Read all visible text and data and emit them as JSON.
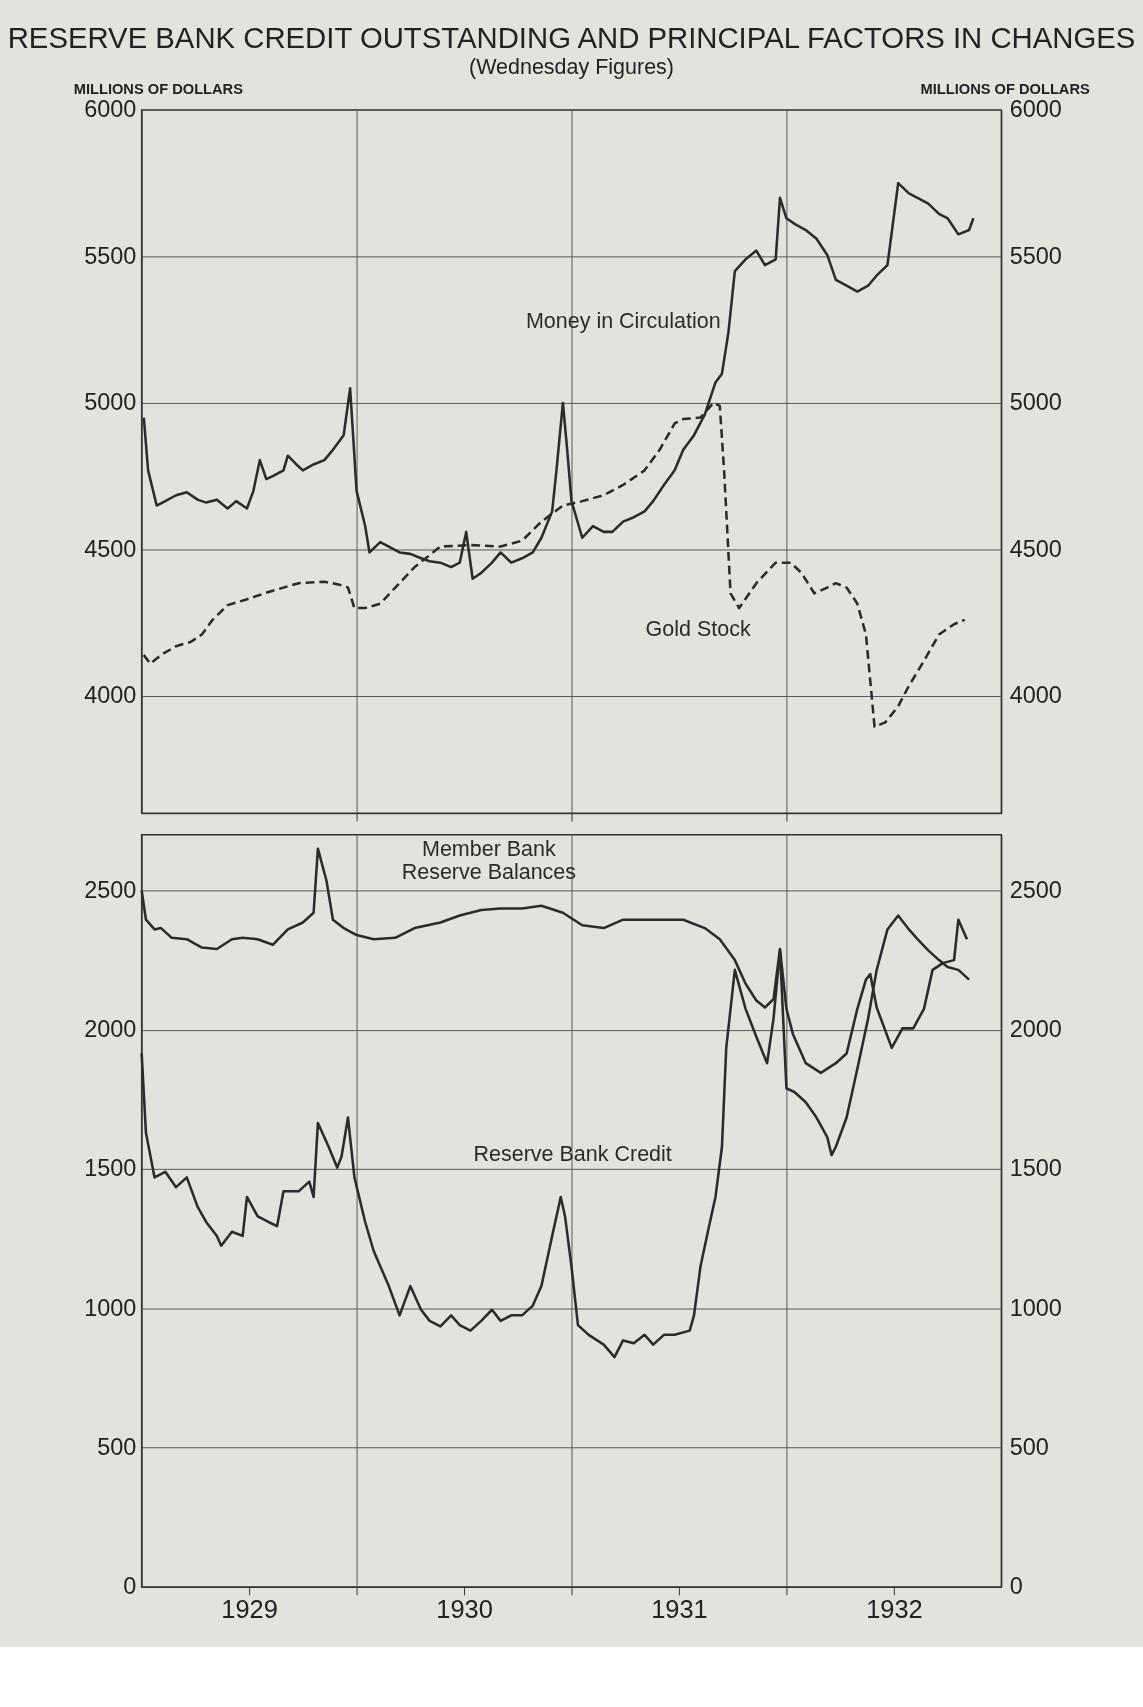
{
  "chart_data": [
    {
      "type": "line",
      "title": "RESERVE BANK CREDIT OUTSTANDING AND PRINCIPAL FACTORS IN CHANGES",
      "subtitle": "(Wednesday Figures)",
      "ylabel": "MILLIONS OF DOLLARS",
      "y2label": "MILLIONS OF DOLLARS",
      "xlim": [
        1929,
        1933
      ],
      "xticks": [
        {
          "value": 1930,
          "label": null
        },
        {
          "value": 1931,
          "label": null
        },
        {
          "value": 1932,
          "label": null
        }
      ],
      "ylim": [
        3600,
        6000
      ],
      "yticks": [
        4000,
        4500,
        5000,
        5500,
        6000
      ],
      "y2lim": [
        3600,
        6000
      ],
      "y2ticks": [
        4000,
        4500,
        5000,
        5500,
        6000
      ],
      "grid": true,
      "tick_labels": "y",
      "series": [
        {
          "name": "Money in Circulation",
          "color": "#2b2b2b",
          "line_style": "solid",
          "x": [
            1929.01,
            1929.03,
            1929.07,
            1929.11,
            1929.16,
            1929.21,
            1929.26,
            1929.3,
            1929.35,
            1929.4,
            1929.44,
            1929.49,
            1929.52,
            1929.55,
            1929.58,
            1929.61,
            1929.66,
            1929.68,
            1929.72,
            1929.75,
            1929.8,
            1929.85,
            1929.89,
            1929.94,
            1929.97,
            1930.0,
            1930.04,
            1930.06,
            1930.11,
            1930.15,
            1930.2,
            1930.25,
            1930.3,
            1930.34,
            1930.39,
            1930.44,
            1930.48,
            1930.51,
            1930.54,
            1930.58,
            1930.63,
            1930.67,
            1930.72,
            1930.77,
            1930.82,
            1930.86,
            1930.91,
            1930.93,
            1930.96,
            1930.98,
            1931.0,
            1931.05,
            1931.1,
            1931.15,
            1931.19,
            1931.24,
            1931.29,
            1931.34,
            1931.38,
            1931.43,
            1931.48,
            1931.52,
            1931.57,
            1931.62,
            1931.67,
            1931.7,
            1931.73,
            1931.76,
            1931.81,
            1931.86,
            1931.9,
            1931.95,
            1931.97,
            1932.0,
            1932.04,
            1932.09,
            1932.14,
            1932.19,
            1932.23,
            1932.28,
            1932.33,
            1932.38,
            1932.42,
            1932.47,
            1932.52,
            1932.57,
            1932.61,
            1932.66,
            1932.71,
            1932.75,
            1932.8,
            1932.85,
            1932.87
          ],
          "values": [
            4950,
            4770,
            4650,
            4665,
            4685,
            4695,
            4670,
            4660,
            4670,
            4640,
            4665,
            4640,
            4700,
            4805,
            4740,
            4750,
            4770,
            4820,
            4790,
            4770,
            4790,
            4805,
            4840,
            4890,
            5050,
            4700,
            4580,
            4490,
            4525,
            4510,
            4490,
            4485,
            4470,
            4460,
            4455,
            4440,
            4455,
            4560,
            4400,
            4420,
            4455,
            4490,
            4455,
            4470,
            4490,
            4540,
            4630,
            4770,
            5000,
            4840,
            4665,
            4540,
            4580,
            4560,
            4560,
            4595,
            4610,
            4630,
            4665,
            4720,
            4770,
            4840,
            4890,
            4960,
            5070,
            5100,
            5240,
            5450,
            5490,
            5520,
            5470,
            5490,
            5700,
            5630,
            5610,
            5590,
            5560,
            5505,
            5420,
            5400,
            5380,
            5400,
            5435,
            5470,
            5750,
            5715,
            5700,
            5680,
            5645,
            5630,
            5575,
            5590,
            5630
          ]
        },
        {
          "name": "Gold Stock",
          "color": "#2b2b2b",
          "line_style": "dashed",
          "x": [
            1929.01,
            1929.04,
            1929.09,
            1929.16,
            1929.23,
            1929.28,
            1929.33,
            1929.4,
            1929.49,
            1929.59,
            1929.73,
            1929.85,
            1929.92,
            1929.96,
            1929.99,
            1930.04,
            1930.11,
            1930.18,
            1930.27,
            1930.39,
            1930.53,
            1930.67,
            1930.77,
            1930.86,
            1930.96,
            1931.05,
            1931.15,
            1931.24,
            1931.34,
            1931.41,
            1931.48,
            1931.52,
            1931.6,
            1931.66,
            1931.69,
            1931.71,
            1931.74,
            1931.78,
            1931.86,
            1931.95,
            1932.02,
            1932.07,
            1932.13,
            1932.19,
            1932.23,
            1932.28,
            1932.33,
            1932.37,
            1932.41,
            1932.46,
            1932.52,
            1932.57,
            1932.64,
            1932.71,
            1932.78,
            1932.83
          ],
          "values": [
            4140,
            4110,
            4140,
            4170,
            4185,
            4210,
            4260,
            4310,
            4330,
            4355,
            4385,
            4390,
            4380,
            4370,
            4300,
            4300,
            4315,
            4370,
            4440,
            4510,
            4515,
            4510,
            4530,
            4595,
            4650,
            4665,
            4685,
            4720,
            4770,
            4840,
            4930,
            4945,
            4950,
            5000,
            4990,
            4770,
            4350,
            4300,
            4385,
            4455,
            4455,
            4420,
            4350,
            4370,
            4385,
            4370,
            4315,
            4210,
            3895,
            3910,
            3965,
            4035,
            4120,
            4210,
            4245,
            4260
          ]
        }
      ]
    },
    {
      "type": "line",
      "xlim": [
        1929,
        1933
      ],
      "xticks": [
        {
          "value": 1929.5,
          "label": "1929"
        },
        {
          "value": 1930,
          "label": null
        },
        {
          "value": 1930.5,
          "label": "1930"
        },
        {
          "value": 1931,
          "label": null
        },
        {
          "value": 1931.5,
          "label": "1931"
        },
        {
          "value": 1932,
          "label": null
        },
        {
          "value": 1932.5,
          "label": "1932"
        }
      ],
      "ylim": [
        0,
        2700
      ],
      "yticks": [
        0,
        500,
        1000,
        1500,
        2000,
        2500
      ],
      "y2lim": [
        0,
        2700
      ],
      "y2ticks": [
        0,
        500,
        1000,
        1500,
        2000,
        2500
      ],
      "grid": true,
      "series": [
        {
          "name": "Member Bank Reserve Balances",
          "color": "#2b2b2b",
          "line_style": "solid",
          "x": [
            1929.0,
            1929.02,
            1929.06,
            1929.09,
            1929.14,
            1929.21,
            1929.28,
            1929.35,
            1929.42,
            1929.47,
            1929.54,
            1929.61,
            1929.68,
            1929.75,
            1929.8,
            1929.82,
            1929.86,
            1929.89,
            1929.94,
            1930.0,
            1930.08,
            1930.18,
            1930.27,
            1930.39,
            1930.48,
            1930.58,
            1930.67,
            1930.77,
            1930.86,
            1930.96,
            1931.05,
            1931.15,
            1931.24,
            1931.34,
            1931.43,
            1931.52,
            1931.62,
            1931.69,
            1931.76,
            1931.81,
            1931.86,
            1931.9,
            1931.94,
            1931.97,
            1932.0,
            1932.03,
            1932.09,
            1932.16,
            1932.23,
            1932.28,
            1932.33,
            1932.37,
            1932.39,
            1932.42,
            1932.49,
            1932.54,
            1932.59,
            1932.64,
            1932.68,
            1932.73,
            1932.78,
            1932.8,
            1932.84
          ],
          "values": [
            2500,
            2395,
            2360,
            2365,
            2330,
            2325,
            2295,
            2290,
            2325,
            2330,
            2325,
            2305,
            2360,
            2385,
            2420,
            2650,
            2535,
            2395,
            2365,
            2340,
            2325,
            2330,
            2365,
            2385,
            2410,
            2430,
            2435,
            2435,
            2445,
            2420,
            2375,
            2365,
            2395,
            2395,
            2395,
            2395,
            2365,
            2325,
            2250,
            2165,
            2105,
            2080,
            2110,
            2290,
            2075,
            1985,
            1880,
            1845,
            1880,
            1915,
            2075,
            2180,
            2200,
            2080,
            1935,
            2005,
            2005,
            2075,
            2215,
            2240,
            2250,
            2395,
            2325
          ]
        },
        {
          "name": "Reserve Bank Credit",
          "color": "#2b2b2b",
          "line_style": "solid",
          "x": [
            1929.0,
            1929.02,
            1929.06,
            1929.11,
            1929.16,
            1929.21,
            1929.26,
            1929.3,
            1929.35,
            1929.37,
            1929.42,
            1929.47,
            1929.49,
            1929.54,
            1929.59,
            1929.63,
            1929.66,
            1929.73,
            1929.78,
            1929.8,
            1929.82,
            1929.87,
            1929.91,
            1929.93,
            1929.96,
            1929.99,
            1930.04,
            1930.08,
            1930.15,
            1930.2,
            1930.25,
            1930.3,
            1930.34,
            1930.39,
            1930.44,
            1930.48,
            1930.53,
            1930.58,
            1930.63,
            1930.67,
            1930.72,
            1930.77,
            1930.82,
            1930.86,
            1930.91,
            1930.95,
            1930.97,
            1931.0,
            1931.03,
            1931.08,
            1931.15,
            1931.2,
            1931.24,
            1931.29,
            1931.34,
            1931.38,
            1931.43,
            1931.48,
            1931.55,
            1931.57,
            1931.6,
            1931.64,
            1931.67,
            1931.7,
            1931.72,
            1931.76,
            1931.81,
            1931.86,
            1931.91,
            1931.94,
            1931.97,
            1932.0,
            1932.04,
            1932.09,
            1932.14,
            1932.19,
            1932.21,
            1932.23,
            1932.28,
            1932.33,
            1932.38,
            1932.42,
            1932.47,
            1932.52,
            1932.57,
            1932.61,
            1932.66,
            1932.71,
            1932.75,
            1932.8,
            1932.85
          ],
          "values": [
            1915,
            1630,
            1470,
            1490,
            1435,
            1470,
            1365,
            1310,
            1260,
            1225,
            1275,
            1260,
            1400,
            1330,
            1310,
            1295,
            1420,
            1420,
            1455,
            1400,
            1665,
            1580,
            1505,
            1545,
            1685,
            1470,
            1310,
            1205,
            1080,
            975,
            1080,
            995,
            955,
            935,
            975,
            940,
            920,
            955,
            995,
            955,
            975,
            975,
            1010,
            1080,
            1260,
            1400,
            1330,
            1150,
            940,
            905,
            870,
            825,
            885,
            875,
            905,
            870,
            905,
            905,
            920,
            975,
            1150,
            1295,
            1400,
            1580,
            1935,
            2215,
            2075,
            1975,
            1880,
            2040,
            2285,
            1790,
            1775,
            1740,
            1685,
            1615,
            1550,
            1580,
            1685,
            1860,
            2040,
            2215,
            2360,
            2410,
            2360,
            2325,
            2285,
            2250,
            2225,
            2215,
            2180
          ]
        }
      ]
    }
  ]
}
